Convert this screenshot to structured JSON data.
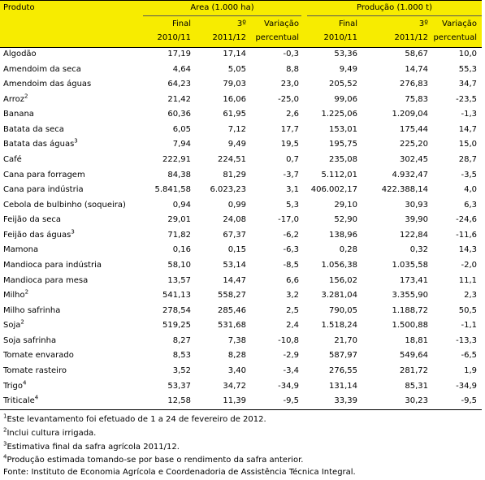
{
  "table": {
    "header": {
      "product": "Produto",
      "groups": [
        "Area (1.000 ha)",
        "Produção (1.000 t)"
      ],
      "sub1": [
        "Final",
        "3º",
        "Variação",
        "Final",
        "3º",
        "Variação"
      ],
      "sub2": [
        "2010/11",
        "2011/12",
        "percentual",
        "2010/11",
        "2011/12",
        "percentual"
      ]
    },
    "rows": [
      {
        "product": "Algodão",
        "cells": [
          "17,19",
          "17,14",
          "-0,3",
          "53,36",
          "58,67",
          "10,0"
        ]
      },
      {
        "product": "Amendoim da seca",
        "cells": [
          "4,64",
          "5,05",
          "8,8",
          "9,49",
          "14,74",
          "55,3"
        ]
      },
      {
        "product": "Amendoim das águas",
        "cells": [
          "64,23",
          "79,03",
          "23,0",
          "205,52",
          "276,83",
          "34,7"
        ]
      },
      {
        "product": "Arroz",
        "note": "2",
        "cells": [
          "21,42",
          "16,06",
          "-25,0",
          "99,06",
          "75,83",
          "-23,5"
        ]
      },
      {
        "product": "Banana",
        "cells": [
          "60,36",
          "61,95",
          "2,6",
          "1.225,06",
          "1.209,04",
          "-1,3"
        ]
      },
      {
        "product": "Batata da seca",
        "cells": [
          "6,05",
          "7,12",
          "17,7",
          "153,01",
          "175,44",
          "14,7"
        ]
      },
      {
        "product": "Batata das águas",
        "note": "3",
        "cells": [
          "7,94",
          "9,49",
          "19,5",
          "195,75",
          "225,20",
          "15,0"
        ]
      },
      {
        "product": "Café",
        "cells": [
          "222,91",
          "224,51",
          "0,7",
          "235,08",
          "302,45",
          "28,7"
        ]
      },
      {
        "product": "Cana para forragem",
        "cells": [
          "84,38",
          "81,29",
          "-3,7",
          "5.112,01",
          "4.932,47",
          "-3,5"
        ]
      },
      {
        "product": "Cana para indústria",
        "cells": [
          "5.841,58",
          "6.023,23",
          "3,1",
          "406.002,17",
          "422.388,14",
          "4,0"
        ]
      },
      {
        "product": "Cebola de bulbinho (soqueira)",
        "cells": [
          "0,94",
          "0,99",
          "5,3",
          "29,10",
          "30,93",
          "6,3"
        ]
      },
      {
        "product": "Feijão da seca",
        "cells": [
          "29,01",
          "24,08",
          "-17,0",
          "52,90",
          "39,90",
          "-24,6"
        ]
      },
      {
        "product": "Feijão das águas",
        "note": "3",
        "cells": [
          "71,82",
          "67,37",
          "-6,2",
          "138,96",
          "122,84",
          "-11,6"
        ]
      },
      {
        "product": "Mamona",
        "cells": [
          "0,16",
          "0,15",
          "-6,3",
          "0,28",
          "0,32",
          "14,3"
        ]
      },
      {
        "product": "Mandioca para indústria",
        "cells": [
          "58,10",
          "53,14",
          "-8,5",
          "1.056,38",
          "1.035,58",
          "-2,0"
        ]
      },
      {
        "product": "Mandioca para mesa",
        "cells": [
          "13,57",
          "14,47",
          "6,6",
          "156,02",
          "173,41",
          "11,1"
        ]
      },
      {
        "product": "Milho",
        "note": "2",
        "cells": [
          "541,13",
          "558,27",
          "3,2",
          "3.281,04",
          "3.355,90",
          "2,3"
        ]
      },
      {
        "product": "Milho safrinha",
        "cells": [
          "278,54",
          "285,46",
          "2,5",
          "790,05",
          "1.188,72",
          "50,5"
        ]
      },
      {
        "product": "Soja",
        "note": "2",
        "cells": [
          "519,25",
          "531,68",
          "2,4",
          "1.518,24",
          "1.500,88",
          "-1,1"
        ]
      },
      {
        "product": "Soja safrinha",
        "cells": [
          "8,27",
          "7,38",
          "-10,8",
          "21,70",
          "18,81",
          "-13,3"
        ]
      },
      {
        "product": "Tomate envarado",
        "cells": [
          "8,53",
          "8,28",
          "-2,9",
          "587,97",
          "549,64",
          "-6,5"
        ]
      },
      {
        "product": "Tomate rasteiro",
        "cells": [
          "3,52",
          "3,40",
          "-3,4",
          "276,55",
          "281,72",
          "1,9"
        ]
      },
      {
        "product": "Trigo",
        "note": "4",
        "cells": [
          "53,37",
          "34,72",
          "-34,9",
          "131,14",
          "85,31",
          "-34,9"
        ]
      },
      {
        "product": "Triticale",
        "note": "4",
        "cells": [
          "12,58",
          "11,39",
          "-9,5",
          "33,39",
          "30,23",
          "-9,5"
        ]
      }
    ]
  },
  "footnotes": [
    {
      "mark": "1",
      "text": "Este levantamento foi efetuado de 1 a 24 de fevereiro de 2012."
    },
    {
      "mark": "2",
      "text": "Inclui cultura irrigada."
    },
    {
      "mark": "3",
      "text": "Estimativa final da safra agrícola 2011/12."
    },
    {
      "mark": "4",
      "text": "Produção estimada tomando-se por base o rendimento da safra anterior."
    }
  ],
  "source": "Fonte: Instituto de Economia Agrícola e Coordenadoria de Assistência Técnica Integral."
}
